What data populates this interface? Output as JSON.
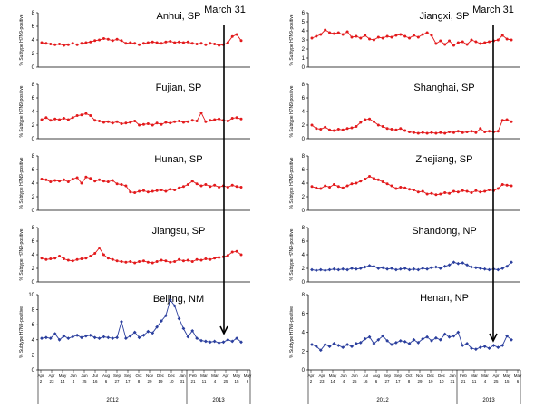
{
  "y_axis_label": "% Subtype H7N9-positive",
  "marker": {
    "label": "March 31"
  },
  "x_axis": {
    "month_labels": [
      "Apr",
      "Apr",
      "May",
      "Jun",
      "Jun",
      "Jul",
      "Aug",
      "Sep",
      "Sep",
      "Oct",
      "Nov",
      "Dec",
      "Dec",
      "Jan",
      "Feb",
      "Mar",
      "Mar",
      "Apr",
      "May",
      "May"
    ],
    "day_labels": [
      "2",
      "23",
      "14",
      "4",
      "25",
      "16",
      "6",
      "27",
      "17",
      "8",
      "29",
      "19",
      "10",
      "31",
      "21",
      "11",
      "4",
      "25",
      "15",
      "6"
    ],
    "years": [
      "2012",
      "2013"
    ]
  },
  "colors": {
    "south": "#e31a1c",
    "north": "#2b3f9e"
  },
  "chart_data": [
    {
      "type": "line",
      "title": "Anhui, SP",
      "ylim": [
        0,
        8
      ],
      "yticks": [
        0,
        2,
        4,
        6,
        8
      ],
      "marker": "circle",
      "color": "#e31a1c",
      "values": [
        3.6,
        3.5,
        3.4,
        3.3,
        3.4,
        3.2,
        3.3,
        3.5,
        3.3,
        3.5,
        3.6,
        3.7,
        3.9,
        4.0,
        4.2,
        4.1,
        3.9,
        4.1,
        3.9,
        3.5,
        3.6,
        3.5,
        3.3,
        3.5,
        3.6,
        3.7,
        3.6,
        3.5,
        3.7,
        3.8,
        3.6,
        3.7,
        3.6,
        3.7,
        3.5,
        3.4,
        3.5,
        3.3,
        3.5,
        3.4,
        3.2,
        3.3,
        3.6,
        4.5,
        4.8,
        3.9
      ]
    },
    {
      "type": "line",
      "title": "Jiangxi, SP",
      "ylim": [
        0,
        6
      ],
      "yticks": [
        0,
        1,
        2,
        3,
        4,
        5,
        6
      ],
      "marker": "circle",
      "color": "#e31a1c",
      "values": [
        3.2,
        3.4,
        3.6,
        4.1,
        3.8,
        3.7,
        3.8,
        3.6,
        3.9,
        3.3,
        3.4,
        3.2,
        3.5,
        3.1,
        3.0,
        3.3,
        3.2,
        3.4,
        3.3,
        3.5,
        3.6,
        3.4,
        3.2,
        3.5,
        3.3,
        3.6,
        3.8,
        3.5,
        2.6,
        2.9,
        2.5,
        2.9,
        2.4,
        2.7,
        2.8,
        2.5,
        3.0,
        2.8,
        2.6,
        2.7,
        2.8,
        2.9,
        3.0,
        3.5,
        3.1,
        3.0
      ]
    },
    {
      "type": "line",
      "title": "Fujian, SP",
      "ylim": [
        0,
        8
      ],
      "yticks": [
        0,
        2,
        4,
        6,
        8
      ],
      "marker": "circle",
      "color": "#e31a1c",
      "values": [
        2.8,
        3.1,
        2.7,
        2.9,
        2.8,
        3.0,
        2.8,
        3.1,
        3.4,
        3.5,
        3.7,
        3.4,
        2.7,
        2.6,
        2.4,
        2.5,
        2.3,
        2.5,
        2.2,
        2.3,
        2.4,
        2.6,
        2.0,
        2.1,
        2.2,
        2.0,
        2.3,
        2.1,
        2.4,
        2.3,
        2.5,
        2.6,
        2.4,
        2.5,
        2.7,
        2.6,
        3.8,
        2.5,
        2.7,
        2.8,
        2.9,
        2.7,
        2.6,
        3.0,
        3.1,
        2.9
      ]
    },
    {
      "type": "line",
      "title": "Shanghai, SP",
      "ylim": [
        0,
        8
      ],
      "yticks": [
        0,
        2,
        4,
        6,
        8
      ],
      "marker": "circle",
      "color": "#e31a1c",
      "values": [
        2.0,
        1.5,
        1.4,
        1.7,
        1.3,
        1.2,
        1.4,
        1.3,
        1.5,
        1.6,
        1.8,
        2.4,
        2.8,
        2.9,
        2.5,
        2.0,
        1.8,
        1.5,
        1.4,
        1.3,
        1.5,
        1.2,
        1.0,
        0.9,
        0.8,
        0.9,
        0.8,
        0.9,
        0.8,
        0.9,
        0.8,
        1.0,
        0.9,
        1.1,
        0.9,
        1.0,
        1.1,
        0.9,
        1.5,
        1.0,
        1.1,
        1.0,
        1.1,
        2.7,
        2.8,
        2.5
      ]
    },
    {
      "type": "line",
      "title": "Hunan, SP",
      "ylim": [
        0,
        8
      ],
      "yticks": [
        0,
        2,
        4,
        6,
        8
      ],
      "marker": "circle",
      "color": "#e31a1c",
      "values": [
        4.6,
        4.5,
        4.2,
        4.4,
        4.3,
        4.5,
        4.2,
        4.6,
        4.8,
        4.0,
        4.9,
        4.7,
        4.3,
        4.5,
        4.3,
        4.2,
        4.4,
        3.9,
        3.8,
        3.6,
        2.7,
        2.6,
        2.8,
        2.9,
        2.7,
        2.8,
        2.9,
        3.0,
        2.8,
        3.1,
        3.0,
        3.3,
        3.5,
        3.8,
        4.3,
        3.9,
        3.6,
        3.8,
        3.5,
        3.7,
        3.4,
        3.6,
        3.4,
        3.7,
        3.5,
        3.4
      ]
    },
    {
      "type": "line",
      "title": "Zhejiang, SP",
      "ylim": [
        0,
        8
      ],
      "yticks": [
        0,
        2,
        4,
        6,
        8
      ],
      "marker": "circle",
      "color": "#e31a1c",
      "values": [
        3.5,
        3.3,
        3.2,
        3.6,
        3.4,
        3.8,
        3.5,
        3.3,
        3.6,
        3.9,
        4.0,
        4.3,
        4.6,
        5.0,
        4.7,
        4.5,
        4.2,
        3.9,
        3.6,
        3.2,
        3.4,
        3.3,
        3.1,
        3.0,
        2.7,
        2.8,
        2.4,
        2.5,
        2.3,
        2.4,
        2.6,
        2.5,
        2.8,
        2.7,
        2.9,
        2.8,
        2.6,
        2.9,
        2.7,
        2.8,
        3.0,
        2.9,
        3.2,
        3.8,
        3.7,
        3.6
      ]
    },
    {
      "type": "line",
      "title": "Jiangsu, SP",
      "ylim": [
        0,
        8
      ],
      "yticks": [
        0,
        2,
        4,
        6,
        8
      ],
      "marker": "circle",
      "color": "#e31a1c",
      "values": [
        3.5,
        3.3,
        3.4,
        3.5,
        3.8,
        3.4,
        3.2,
        3.1,
        3.3,
        3.4,
        3.5,
        3.8,
        4.2,
        5.0,
        4.0,
        3.5,
        3.3,
        3.1,
        3.0,
        2.9,
        3.0,
        2.8,
        3.0,
        3.1,
        2.9,
        2.8,
        3.0,
        3.2,
        3.1,
        2.9,
        3.0,
        3.3,
        3.1,
        3.2,
        3.0,
        3.3,
        3.2,
        3.4,
        3.3,
        3.5,
        3.6,
        3.7,
        3.9,
        4.4,
        4.5,
        4.0
      ]
    },
    {
      "type": "line",
      "title": "Shandong, NP",
      "ylim": [
        0,
        8
      ],
      "yticks": [
        0,
        2,
        4,
        6,
        8
      ],
      "marker": "diamond",
      "color": "#2b3f9e",
      "values": [
        1.8,
        1.7,
        1.8,
        1.7,
        1.8,
        1.9,
        1.8,
        1.9,
        1.8,
        2.0,
        1.9,
        2.0,
        2.2,
        2.4,
        2.3,
        2.0,
        2.1,
        1.9,
        2.0,
        1.8,
        1.9,
        2.0,
        1.8,
        1.9,
        1.8,
        2.0,
        1.9,
        2.1,
        2.2,
        2.0,
        2.3,
        2.5,
        2.9,
        2.7,
        2.8,
        2.5,
        2.2,
        2.1,
        2.0,
        1.9,
        1.8,
        1.9,
        1.8,
        2.0,
        2.3,
        2.9
      ]
    },
    {
      "type": "line",
      "title": "Beijing, NM",
      "ylim": [
        0,
        10
      ],
      "yticks": [
        0,
        2,
        4,
        6,
        8,
        10
      ],
      "marker": "diamond",
      "color": "#2b3f9e",
      "values": [
        4.2,
        4.3,
        4.2,
        4.8,
        4.0,
        4.5,
        4.2,
        4.4,
        4.6,
        4.3,
        4.5,
        4.6,
        4.3,
        4.2,
        4.4,
        4.3,
        4.2,
        4.3,
        6.4,
        4.2,
        4.5,
        5.0,
        4.3,
        4.6,
        5.1,
        4.9,
        5.7,
        6.5,
        7.2,
        9.3,
        8.5,
        6.8,
        5.5,
        4.4,
        5.2,
        4.2,
        3.9,
        3.8,
        3.7,
        3.8,
        3.6,
        3.7,
        4.0,
        3.8,
        4.2,
        3.7
      ]
    },
    {
      "type": "line",
      "title": "Henan, NP",
      "ylim": [
        0,
        8
      ],
      "yticks": [
        0,
        2,
        4,
        6,
        8
      ],
      "marker": "diamond",
      "color": "#2b3f9e",
      "values": [
        2.7,
        2.5,
        2.1,
        2.7,
        2.5,
        2.8,
        2.6,
        2.4,
        2.7,
        2.5,
        2.8,
        2.9,
        3.3,
        3.5,
        2.8,
        3.2,
        3.6,
        3.1,
        2.7,
        2.9,
        3.1,
        3.0,
        2.8,
        3.2,
        2.9,
        3.3,
        3.5,
        3.1,
        3.4,
        3.2,
        3.8,
        3.5,
        3.6,
        4.0,
        2.6,
        2.8,
        2.3,
        2.2,
        2.4,
        2.5,
        2.3,
        2.6,
        2.4,
        2.6,
        3.6,
        3.2
      ]
    }
  ]
}
